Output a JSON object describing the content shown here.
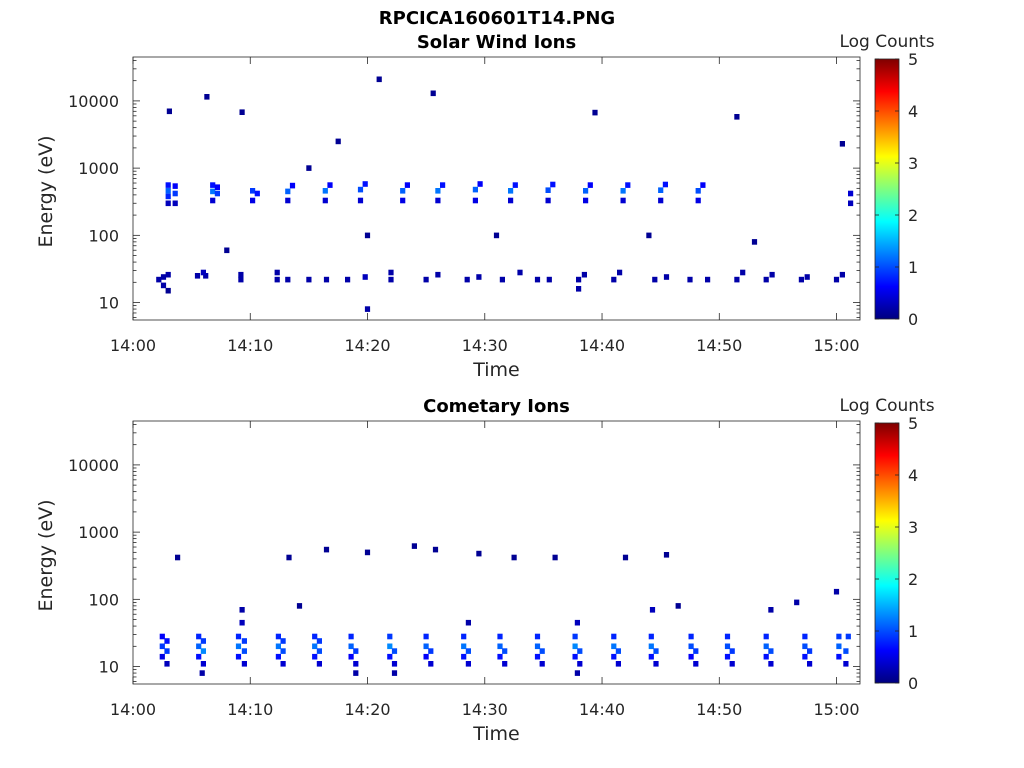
{
  "figure": {
    "title": "RPCICA160601T14.PNG"
  },
  "colormap": {
    "name": "jet",
    "stops": [
      "#00007f",
      "#0000ff",
      "#007fff",
      "#00ffff",
      "#7fff7f",
      "#ffff00",
      "#ff7f00",
      "#ff0000",
      "#7f0000"
    ]
  },
  "chart_data": [
    {
      "type": "heatmap",
      "title": "Solar Wind Ions",
      "xlabel": "Time",
      "ylabel": "Energy (eV)",
      "yscale": "log",
      "xlim": [
        0,
        62
      ],
      "ylim": [
        5.5,
        45000
      ],
      "x_ticks": [
        {
          "value": 0,
          "label": "14:00"
        },
        {
          "value": 10,
          "label": "14:10"
        },
        {
          "value": 20,
          "label": "14:20"
        },
        {
          "value": 30,
          "label": "14:30"
        },
        {
          "value": 40,
          "label": "14:40"
        },
        {
          "value": 50,
          "label": "14:50"
        },
        {
          "value": 60,
          "label": "15:00"
        }
      ],
      "y_ticks": [
        {
          "value": 10,
          "label": "10"
        },
        {
          "value": 100,
          "label": "100"
        },
        {
          "value": 1000,
          "label": "1000"
        },
        {
          "value": 10000,
          "label": "10000"
        }
      ],
      "colorbar": {
        "label": "Log Counts",
        "range": [
          0,
          5
        ],
        "ticks": [
          {
            "value": 0,
            "label": "0"
          },
          {
            "value": 1,
            "label": "1"
          },
          {
            "value": 2,
            "label": "2"
          },
          {
            "value": 3,
            "label": "3"
          },
          {
            "value": 4,
            "label": "4"
          },
          {
            "value": 5,
            "label": "5"
          }
        ]
      },
      "units": {
        "x": "minutes after 14:00",
        "y": "eV",
        "z": "log10 counts"
      },
      "cells": [
        [
          3,
          300,
          0.3
        ],
        [
          3,
          380,
          0.8
        ],
        [
          3,
          460,
          1.1
        ],
        [
          3,
          560,
          0.7
        ],
        [
          3.6,
          300,
          0.3
        ],
        [
          3.6,
          420,
          0.9
        ],
        [
          3.6,
          540,
          0.6
        ],
        [
          2.2,
          22,
          0.2
        ],
        [
          2.6,
          18,
          0.2
        ],
        [
          2.6,
          24,
          0.2
        ],
        [
          3.0,
          15,
          0.1
        ],
        [
          3.0,
          26,
          0.2
        ],
        [
          6.8,
          330,
          0.4
        ],
        [
          6.8,
          450,
          1.2
        ],
        [
          6.8,
          560,
          0.7
        ],
        [
          7.2,
          420,
          0.9
        ],
        [
          7.2,
          520,
          0.6
        ],
        [
          5.5,
          25,
          0.2
        ],
        [
          6.2,
          25,
          0.2
        ],
        [
          6.0,
          28,
          0.3
        ],
        [
          10.2,
          330,
          0.5
        ],
        [
          10.2,
          460,
          0.9
        ],
        [
          10.6,
          420,
          0.7
        ],
        [
          9.2,
          22,
          0.2
        ],
        [
          9.2,
          26,
          0.2
        ],
        [
          13.2,
          330,
          0.4
        ],
        [
          13.2,
          450,
          1.1
        ],
        [
          13.6,
          550,
          0.6
        ],
        [
          12.3,
          22,
          0.2
        ],
        [
          12.3,
          28,
          0.2
        ],
        [
          13.2,
          22,
          0.2
        ],
        [
          16.4,
          330,
          0.4
        ],
        [
          16.4,
          460,
          1.2
        ],
        [
          16.8,
          560,
          0.6
        ],
        [
          15.0,
          22,
          0.2
        ],
        [
          16.5,
          22,
          0.2
        ],
        [
          19.4,
          330,
          0.4
        ],
        [
          19.4,
          480,
          1.0
        ],
        [
          19.8,
          580,
          0.7
        ],
        [
          18.3,
          22,
          0.2
        ],
        [
          19.8,
          24,
          0.3
        ],
        [
          23.0,
          330,
          0.5
        ],
        [
          23.0,
          460,
          1.1
        ],
        [
          23.4,
          560,
          0.6
        ],
        [
          22.0,
          22,
          0.2
        ],
        [
          22.0,
          28,
          0.2
        ],
        [
          20.0,
          8,
          0.2
        ],
        [
          26.0,
          330,
          0.4
        ],
        [
          26.0,
          460,
          1.2
        ],
        [
          26.4,
          560,
          0.7
        ],
        [
          25.0,
          22,
          0.2
        ],
        [
          26.0,
          26,
          0.2
        ],
        [
          29.2,
          330,
          0.5
        ],
        [
          29.2,
          480,
          1.1
        ],
        [
          29.6,
          580,
          0.6
        ],
        [
          28.5,
          22,
          0.2
        ],
        [
          29.5,
          24,
          0.2
        ],
        [
          32.2,
          330,
          0.4
        ],
        [
          32.2,
          460,
          1.2
        ],
        [
          32.6,
          560,
          0.7
        ],
        [
          31.5,
          22,
          0.2
        ],
        [
          33.0,
          28,
          0.2
        ],
        [
          35.4,
          330,
          0.4
        ],
        [
          35.4,
          470,
          1.0
        ],
        [
          35.8,
          570,
          0.7
        ],
        [
          34.5,
          22,
          0.2
        ],
        [
          35.5,
          22,
          0.2
        ],
        [
          38.6,
          330,
          0.5
        ],
        [
          38.6,
          460,
          1.1
        ],
        [
          39.0,
          560,
          0.6
        ],
        [
          38.0,
          22,
          0.2
        ],
        [
          38.0,
          16,
          0.2
        ],
        [
          38.5,
          26,
          0.2
        ],
        [
          41.8,
          330,
          0.4
        ],
        [
          41.8,
          460,
          1.2
        ],
        [
          42.2,
          560,
          0.7
        ],
        [
          41.0,
          22,
          0.2
        ],
        [
          41.5,
          28,
          0.2
        ],
        [
          45.0,
          330,
          0.4
        ],
        [
          45.0,
          470,
          1.1
        ],
        [
          45.4,
          570,
          0.7
        ],
        [
          44.5,
          22,
          0.2
        ],
        [
          45.5,
          24,
          0.2
        ],
        [
          48.2,
          330,
          0.5
        ],
        [
          48.2,
          460,
          1.0
        ],
        [
          48.6,
          560,
          0.6
        ],
        [
          47.5,
          22,
          0.2
        ],
        [
          49.0,
          22,
          0.2
        ],
        [
          51.5,
          22,
          0.2
        ],
        [
          52.0,
          28,
          0.2
        ],
        [
          54.0,
          22,
          0.2
        ],
        [
          54.5,
          26,
          0.2
        ],
        [
          57.0,
          22,
          0.2
        ],
        [
          57.5,
          24,
          0.2
        ],
        [
          60.0,
          22,
          0.2
        ],
        [
          60.5,
          26,
          0.2
        ],
        [
          61.2,
          300,
          0.3
        ],
        [
          61.2,
          420,
          0.4
        ],
        [
          3.1,
          7000,
          0.1
        ],
        [
          6.3,
          11500,
          0.1
        ],
        [
          9.3,
          6800,
          0.1
        ],
        [
          21.0,
          21000,
          0.1
        ],
        [
          25.6,
          13000,
          0.1
        ],
        [
          39.4,
          6700,
          0.1
        ],
        [
          51.5,
          5800,
          0.1
        ],
        [
          60.5,
          2300,
          0.1
        ],
        [
          17.5,
          2500,
          0.1
        ],
        [
          8.0,
          60,
          0.1
        ],
        [
          15.0,
          1000,
          0.1
        ],
        [
          20.0,
          100,
          0.1
        ],
        [
          31.0,
          100,
          0.1
        ],
        [
          44.0,
          100,
          0.1
        ],
        [
          53.0,
          80,
          0.1
        ]
      ]
    },
    {
      "type": "heatmap",
      "title": "Cometary Ions",
      "xlabel": "Time",
      "ylabel": "Energy (eV)",
      "yscale": "log",
      "xlim": [
        0,
        62
      ],
      "ylim": [
        5.5,
        45000
      ],
      "x_ticks": [
        {
          "value": 0,
          "label": "14:00"
        },
        {
          "value": 10,
          "label": "14:10"
        },
        {
          "value": 20,
          "label": "14:20"
        },
        {
          "value": 30,
          "label": "14:30"
        },
        {
          "value": 40,
          "label": "14:40"
        },
        {
          "value": 50,
          "label": "14:50"
        },
        {
          "value": 60,
          "label": "15:00"
        }
      ],
      "y_ticks": [
        {
          "value": 10,
          "label": "10"
        },
        {
          "value": 100,
          "label": "100"
        },
        {
          "value": 1000,
          "label": "1000"
        },
        {
          "value": 10000,
          "label": "10000"
        }
      ],
      "colorbar": {
        "label": "Log Counts",
        "range": [
          0,
          5
        ],
        "ticks": [
          {
            "value": 0,
            "label": "0"
          },
          {
            "value": 1,
            "label": "1"
          },
          {
            "value": 2,
            "label": "2"
          },
          {
            "value": 3,
            "label": "3"
          },
          {
            "value": 4,
            "label": "4"
          },
          {
            "value": 5,
            "label": "5"
          }
        ]
      },
      "units": {
        "x": "minutes after 14:00",
        "y": "eV",
        "z": "log10 counts"
      },
      "cells": [
        [
          2.5,
          14,
          0.5
        ],
        [
          2.5,
          20,
          0.9
        ],
        [
          2.5,
          28,
          0.6
        ],
        [
          2.9,
          11,
          0.3
        ],
        [
          2.9,
          17,
          0.9
        ],
        [
          2.9,
          24,
          0.7
        ],
        [
          5.6,
          14,
          0.7
        ],
        [
          5.6,
          20,
          1.1
        ],
        [
          5.6,
          28,
          0.8
        ],
        [
          6.0,
          11,
          0.4
        ],
        [
          6.0,
          17,
          1.3
        ],
        [
          6.0,
          24,
          0.9
        ],
        [
          5.9,
          8,
          0.2
        ],
        [
          9.0,
          14,
          0.7
        ],
        [
          9.0,
          20,
          1.2
        ],
        [
          9.0,
          28,
          0.8
        ],
        [
          9.5,
          11,
          0.4
        ],
        [
          9.5,
          17,
          1.0
        ],
        [
          9.5,
          24,
          0.9
        ],
        [
          9.3,
          45,
          0.3
        ],
        [
          9.3,
          70,
          0.2
        ],
        [
          12.4,
          14,
          0.7
        ],
        [
          12.4,
          20,
          1.2
        ],
        [
          12.4,
          28,
          0.8
        ],
        [
          12.8,
          11,
          0.4
        ],
        [
          12.8,
          17,
          1.0
        ],
        [
          12.8,
          24,
          0.9
        ],
        [
          15.5,
          14,
          0.7
        ],
        [
          15.5,
          20,
          1.2
        ],
        [
          15.5,
          28,
          0.8
        ],
        [
          15.9,
          11,
          0.4
        ],
        [
          15.9,
          17,
          1.0
        ],
        [
          15.9,
          24,
          0.9
        ],
        [
          18.6,
          14,
          0.6
        ],
        [
          18.6,
          20,
          1.1
        ],
        [
          18.6,
          28,
          0.8
        ],
        [
          19.0,
          11,
          0.4
        ],
        [
          19.0,
          17,
          0.9
        ],
        [
          19.0,
          8,
          0.2
        ],
        [
          21.9,
          14,
          0.7
        ],
        [
          21.9,
          20,
          1.3
        ],
        [
          21.9,
          28,
          0.9
        ],
        [
          22.3,
          11,
          0.4
        ],
        [
          22.3,
          17,
          1.0
        ],
        [
          22.3,
          8,
          0.2
        ],
        [
          25.0,
          14,
          0.6
        ],
        [
          25.0,
          20,
          1.1
        ],
        [
          25.0,
          28,
          0.8
        ],
        [
          25.4,
          11,
          0.4
        ],
        [
          25.4,
          17,
          0.9
        ],
        [
          28.2,
          14,
          0.7
        ],
        [
          28.2,
          20,
          1.2
        ],
        [
          28.2,
          28,
          0.8
        ],
        [
          28.6,
          11,
          0.4
        ],
        [
          28.6,
          17,
          1.0
        ],
        [
          28.6,
          45,
          0.2
        ],
        [
          31.3,
          14,
          0.7
        ],
        [
          31.3,
          20,
          1.1
        ],
        [
          31.3,
          28,
          0.8
        ],
        [
          31.7,
          11,
          0.4
        ],
        [
          31.7,
          17,
          1.0
        ],
        [
          34.5,
          14,
          0.7
        ],
        [
          34.5,
          20,
          1.1
        ],
        [
          34.5,
          28,
          0.8
        ],
        [
          34.9,
          11,
          0.4
        ],
        [
          34.9,
          17,
          1.0
        ],
        [
          37.7,
          14,
          0.7
        ],
        [
          37.7,
          20,
          1.3
        ],
        [
          37.7,
          28,
          0.9
        ],
        [
          38.1,
          11,
          0.4
        ],
        [
          38.1,
          17,
          1.0
        ],
        [
          37.9,
          45,
          0.3
        ],
        [
          37.9,
          8,
          0.2
        ],
        [
          41.0,
          14,
          0.7
        ],
        [
          41.0,
          20,
          1.2
        ],
        [
          41.0,
          28,
          0.8
        ],
        [
          41.4,
          11,
          0.4
        ],
        [
          41.4,
          17,
          1.0
        ],
        [
          44.2,
          14,
          0.7
        ],
        [
          44.2,
          20,
          1.2
        ],
        [
          44.2,
          28,
          0.8
        ],
        [
          44.6,
          11,
          0.4
        ],
        [
          44.6,
          17,
          1.0
        ],
        [
          44.3,
          70,
          0.3
        ],
        [
          47.6,
          14,
          0.6
        ],
        [
          47.6,
          20,
          1.0
        ],
        [
          47.6,
          28,
          0.8
        ],
        [
          48.0,
          11,
          0.4
        ],
        [
          48.0,
          17,
          0.9
        ],
        [
          50.7,
          14,
          0.7
        ],
        [
          50.7,
          20,
          1.0
        ],
        [
          50.7,
          28,
          0.8
        ],
        [
          51.1,
          11,
          0.4
        ],
        [
          51.1,
          17,
          0.9
        ],
        [
          54.0,
          14,
          0.7
        ],
        [
          54.0,
          20,
          1.1
        ],
        [
          54.0,
          28,
          0.8
        ],
        [
          54.4,
          11,
          0.4
        ],
        [
          54.4,
          17,
          1.0
        ],
        [
          54.4,
          70,
          0.2
        ],
        [
          57.3,
          14,
          0.7
        ],
        [
          57.3,
          20,
          1.0
        ],
        [
          57.3,
          28,
          0.8
        ],
        [
          57.7,
          11,
          0.4
        ],
        [
          57.7,
          17,
          0.9
        ],
        [
          56.6,
          90,
          0.2
        ],
        [
          60.2,
          14,
          0.7
        ],
        [
          60.2,
          20,
          1.1
        ],
        [
          60.2,
          28,
          0.9
        ],
        [
          60.8,
          11,
          0.4
        ],
        [
          60.8,
          17,
          1.0
        ],
        [
          61.0,
          28,
          0.9
        ],
        [
          60.0,
          130,
          0.2
        ],
        [
          3.8,
          420,
          0.1
        ],
        [
          13.3,
          420,
          0.1
        ],
        [
          16.5,
          550,
          0.1
        ],
        [
          20.0,
          500,
          0.1
        ],
        [
          24.0,
          620,
          0.1
        ],
        [
          25.8,
          550,
          0.1
        ],
        [
          29.5,
          480,
          0.1
        ],
        [
          32.5,
          420,
          0.1
        ],
        [
          36.0,
          420,
          0.1
        ],
        [
          42.0,
          420,
          0.1
        ],
        [
          45.5,
          460,
          0.1
        ],
        [
          14.2,
          80,
          0.1
        ],
        [
          46.5,
          80,
          0.1
        ]
      ]
    }
  ]
}
